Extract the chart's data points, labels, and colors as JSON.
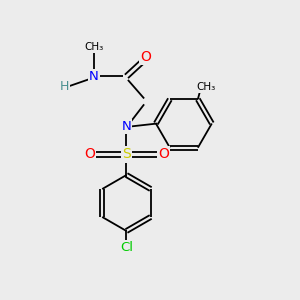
{
  "bg_color": "#ececec",
  "atom_colors": {
    "N": "#0000ff",
    "O": "#ff0000",
    "S": "#cccc00",
    "Cl": "#00cc00",
    "C": "#000000",
    "H": "#4a9090"
  },
  "bond_color": "#000000",
  "lw": 1.3
}
